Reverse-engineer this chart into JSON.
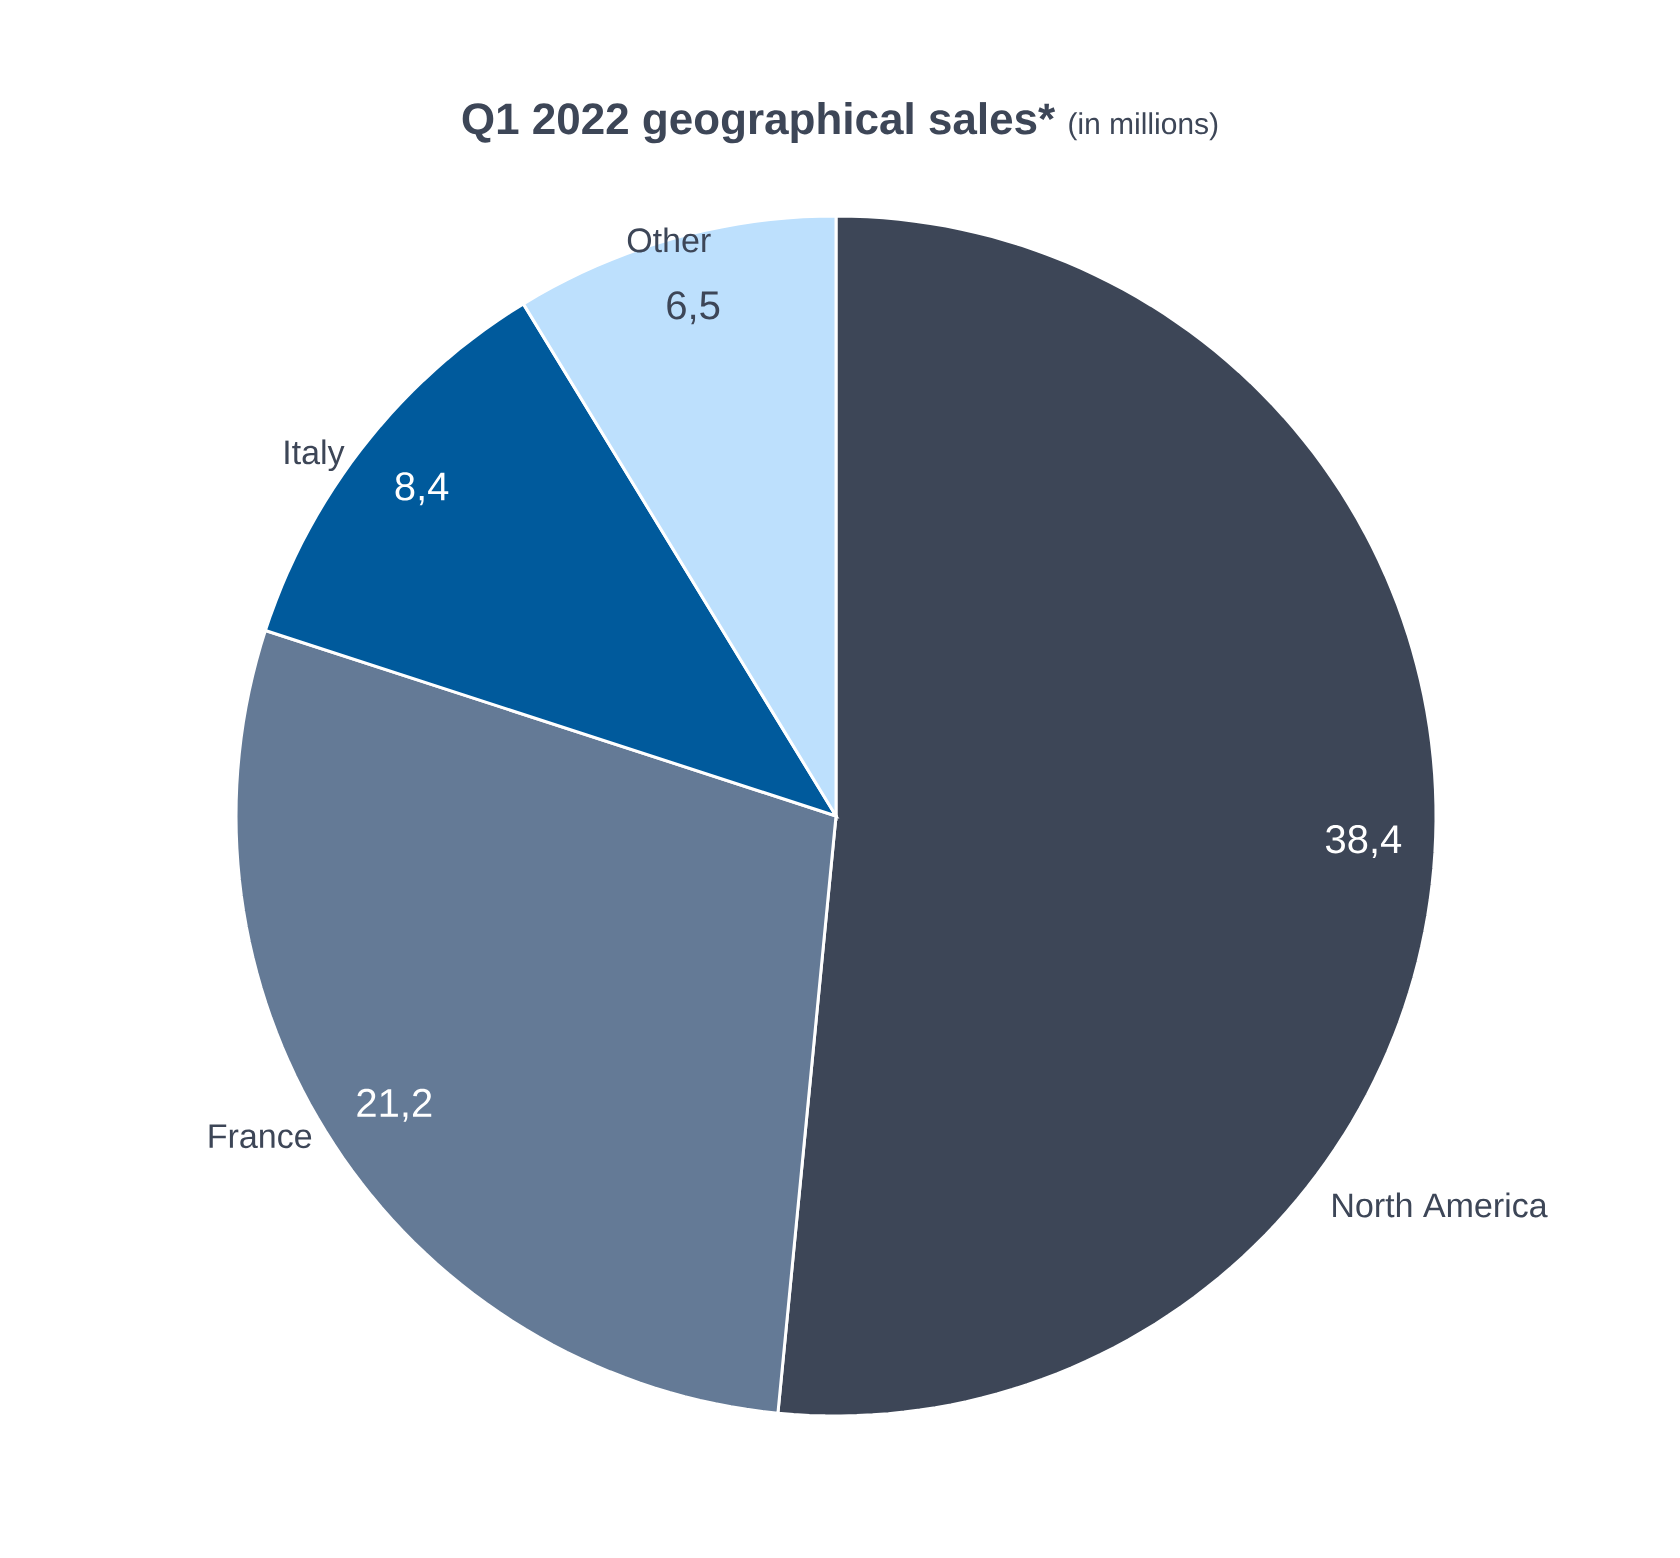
{
  "chart_data": {
    "type": "pie",
    "title": "Q1 2022 geographical sales*",
    "subtitle": "(in millions)",
    "categories": [
      "North America",
      "France",
      "Italy",
      "Other"
    ],
    "values": [
      38.4,
      21.2,
      8.4,
      6.5
    ],
    "value_labels": [
      "38,4",
      "21,2",
      "8,4",
      "6,5"
    ],
    "colors": [
      "#3d4657",
      "#647a96",
      "#005a9c",
      "#bde0fd"
    ]
  }
}
